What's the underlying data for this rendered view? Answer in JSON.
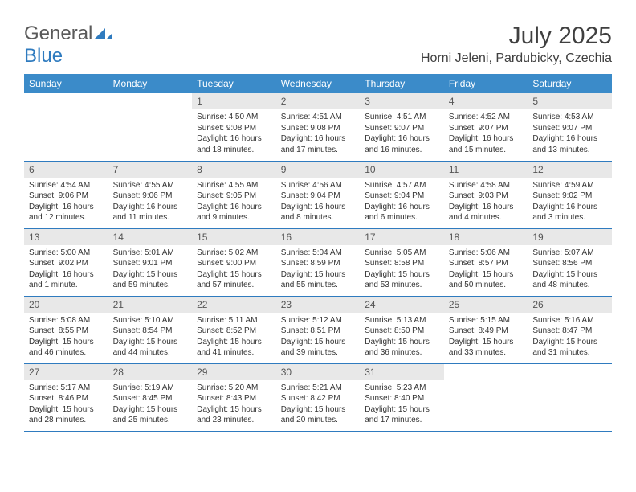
{
  "logo": {
    "text1": "General",
    "text2": "Blue"
  },
  "title": "July 2025",
  "location": "Horni Jeleni, Pardubicky, Czechia",
  "colors": {
    "header_bg": "#3b8bc9",
    "header_text": "#ffffff",
    "daynum_bg": "#e8e8e8",
    "border": "#2f7bbf",
    "title_color": "#404040",
    "logo_gray": "#5a5a5a",
    "logo_blue": "#2f7bbf"
  },
  "daysOfWeek": [
    "Sunday",
    "Monday",
    "Tuesday",
    "Wednesday",
    "Thursday",
    "Friday",
    "Saturday"
  ],
  "weeks": [
    [
      {
        "empty": true
      },
      {
        "empty": true
      },
      {
        "num": "1",
        "sunrise": "4:50 AM",
        "sunset": "9:08 PM",
        "daylight": "16 hours and 18 minutes."
      },
      {
        "num": "2",
        "sunrise": "4:51 AM",
        "sunset": "9:08 PM",
        "daylight": "16 hours and 17 minutes."
      },
      {
        "num": "3",
        "sunrise": "4:51 AM",
        "sunset": "9:07 PM",
        "daylight": "16 hours and 16 minutes."
      },
      {
        "num": "4",
        "sunrise": "4:52 AM",
        "sunset": "9:07 PM",
        "daylight": "16 hours and 15 minutes."
      },
      {
        "num": "5",
        "sunrise": "4:53 AM",
        "sunset": "9:07 PM",
        "daylight": "16 hours and 13 minutes."
      }
    ],
    [
      {
        "num": "6",
        "sunrise": "4:54 AM",
        "sunset": "9:06 PM",
        "daylight": "16 hours and 12 minutes."
      },
      {
        "num": "7",
        "sunrise": "4:55 AM",
        "sunset": "9:06 PM",
        "daylight": "16 hours and 11 minutes."
      },
      {
        "num": "8",
        "sunrise": "4:55 AM",
        "sunset": "9:05 PM",
        "daylight": "16 hours and 9 minutes."
      },
      {
        "num": "9",
        "sunrise": "4:56 AM",
        "sunset": "9:04 PM",
        "daylight": "16 hours and 8 minutes."
      },
      {
        "num": "10",
        "sunrise": "4:57 AM",
        "sunset": "9:04 PM",
        "daylight": "16 hours and 6 minutes."
      },
      {
        "num": "11",
        "sunrise": "4:58 AM",
        "sunset": "9:03 PM",
        "daylight": "16 hours and 4 minutes."
      },
      {
        "num": "12",
        "sunrise": "4:59 AM",
        "sunset": "9:02 PM",
        "daylight": "16 hours and 3 minutes."
      }
    ],
    [
      {
        "num": "13",
        "sunrise": "5:00 AM",
        "sunset": "9:02 PM",
        "daylight": "16 hours and 1 minute."
      },
      {
        "num": "14",
        "sunrise": "5:01 AM",
        "sunset": "9:01 PM",
        "daylight": "15 hours and 59 minutes."
      },
      {
        "num": "15",
        "sunrise": "5:02 AM",
        "sunset": "9:00 PM",
        "daylight": "15 hours and 57 minutes."
      },
      {
        "num": "16",
        "sunrise": "5:04 AM",
        "sunset": "8:59 PM",
        "daylight": "15 hours and 55 minutes."
      },
      {
        "num": "17",
        "sunrise": "5:05 AM",
        "sunset": "8:58 PM",
        "daylight": "15 hours and 53 minutes."
      },
      {
        "num": "18",
        "sunrise": "5:06 AM",
        "sunset": "8:57 PM",
        "daylight": "15 hours and 50 minutes."
      },
      {
        "num": "19",
        "sunrise": "5:07 AM",
        "sunset": "8:56 PM",
        "daylight": "15 hours and 48 minutes."
      }
    ],
    [
      {
        "num": "20",
        "sunrise": "5:08 AM",
        "sunset": "8:55 PM",
        "daylight": "15 hours and 46 minutes."
      },
      {
        "num": "21",
        "sunrise": "5:10 AM",
        "sunset": "8:54 PM",
        "daylight": "15 hours and 44 minutes."
      },
      {
        "num": "22",
        "sunrise": "5:11 AM",
        "sunset": "8:52 PM",
        "daylight": "15 hours and 41 minutes."
      },
      {
        "num": "23",
        "sunrise": "5:12 AM",
        "sunset": "8:51 PM",
        "daylight": "15 hours and 39 minutes."
      },
      {
        "num": "24",
        "sunrise": "5:13 AM",
        "sunset": "8:50 PM",
        "daylight": "15 hours and 36 minutes."
      },
      {
        "num": "25",
        "sunrise": "5:15 AM",
        "sunset": "8:49 PM",
        "daylight": "15 hours and 33 minutes."
      },
      {
        "num": "26",
        "sunrise": "5:16 AM",
        "sunset": "8:47 PM",
        "daylight": "15 hours and 31 minutes."
      }
    ],
    [
      {
        "num": "27",
        "sunrise": "5:17 AM",
        "sunset": "8:46 PM",
        "daylight": "15 hours and 28 minutes."
      },
      {
        "num": "28",
        "sunrise": "5:19 AM",
        "sunset": "8:45 PM",
        "daylight": "15 hours and 25 minutes."
      },
      {
        "num": "29",
        "sunrise": "5:20 AM",
        "sunset": "8:43 PM",
        "daylight": "15 hours and 23 minutes."
      },
      {
        "num": "30",
        "sunrise": "5:21 AM",
        "sunset": "8:42 PM",
        "daylight": "15 hours and 20 minutes."
      },
      {
        "num": "31",
        "sunrise": "5:23 AM",
        "sunset": "8:40 PM",
        "daylight": "15 hours and 17 minutes."
      },
      {
        "empty": true
      },
      {
        "empty": true
      }
    ]
  ]
}
